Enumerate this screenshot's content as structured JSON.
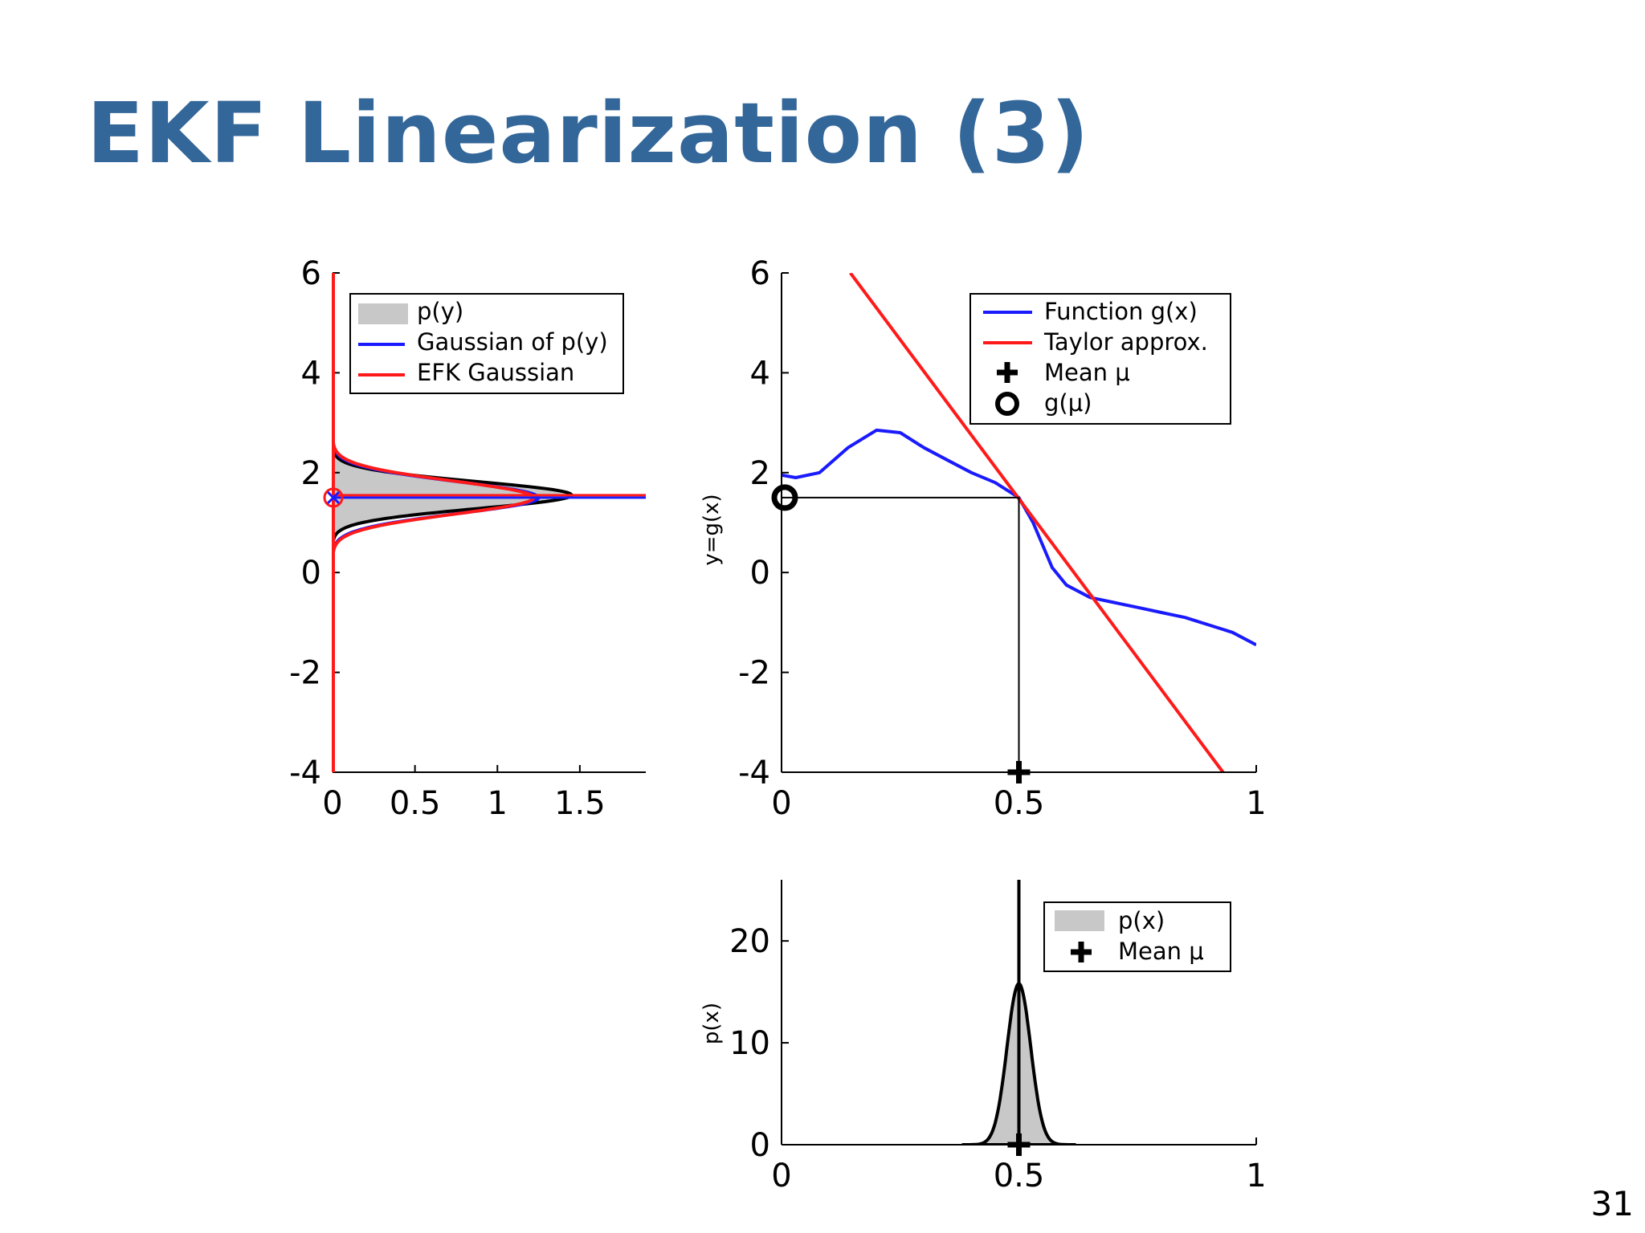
{
  "slide": {
    "title": "EKF Linearization (3)",
    "page_number": "31",
    "title_color": "#336699"
  },
  "colors": {
    "blue": "#1a1aff",
    "red": "#ff1a1a",
    "black": "#000000",
    "fill_gray": "#c8c8c8"
  },
  "chart_data": [
    {
      "id": "py",
      "type": "area",
      "orientation": "horizontal",
      "xlim": [
        0,
        1.9
      ],
      "ylim": [
        -4,
        6
      ],
      "xticks": [
        0,
        0.5,
        1,
        1.5
      ],
      "xtick_labels": [
        "0",
        "0.5",
        "1",
        "1.5"
      ],
      "yticks": [
        -4,
        -2,
        0,
        2,
        4,
        6
      ],
      "ytick_labels": [
        "-4",
        "-2",
        "0",
        "2",
        "4",
        "6"
      ],
      "legend_position": "top-right",
      "legend": [
        "p(y)",
        "Gaussian of p(y)",
        "EFK Gaussian"
      ],
      "series": [
        {
          "name": "p(y)",
          "style": "filled-histogram",
          "mean": 1.55,
          "std": 0.27,
          "peak": 1.45
        },
        {
          "name": "Gaussian of p(y)",
          "mean": 1.5,
          "std": 0.32,
          "peak": 1.25
        },
        {
          "name": "EFK Gaussian",
          "mean": 1.5,
          "std": 0.33,
          "peak": 1.22
        }
      ],
      "markers": [
        {
          "y": 1.5,
          "type": "circle+cross"
        }
      ]
    },
    {
      "id": "gx",
      "type": "line",
      "xlim": [
        0,
        1
      ],
      "ylim": [
        -4,
        6
      ],
      "xticks": [
        0,
        0.5,
        1
      ],
      "xtick_labels": [
        "0",
        "0.5",
        "1"
      ],
      "yticks": [
        -4,
        -2,
        0,
        2,
        4,
        6
      ],
      "ytick_labels": [
        "-4",
        "-2",
        "0",
        "2",
        "4",
        "6"
      ],
      "ylabel": "y=g(x)",
      "legend_position": "top-right",
      "legend": [
        "Function g(x)",
        "Taylor approx.",
        "Mean μ",
        "g(μ)"
      ],
      "series": [
        {
          "name": "Function g(x)",
          "x": [
            0,
            0.03,
            0.08,
            0.14,
            0.2,
            0.25,
            0.3,
            0.35,
            0.4,
            0.45,
            0.5,
            0.53,
            0.57,
            0.6,
            0.65,
            0.7,
            0.75,
            0.8,
            0.85,
            0.9,
            0.95,
            1.0
          ],
          "y": [
            1.95,
            1.9,
            2.0,
            2.5,
            2.85,
            2.8,
            2.5,
            2.25,
            2.0,
            1.8,
            1.5,
            1.0,
            0.1,
            -0.25,
            -0.5,
            -0.6,
            -0.7,
            -0.8,
            -0.9,
            -1.05,
            -1.2,
            -1.45
          ]
        },
        {
          "name": "Taylor approx.",
          "x": [
            0.145,
            0.93
          ],
          "y": [
            6.0,
            -4.0
          ]
        }
      ],
      "mean_mu": 0.5,
      "g_mu": 1.5
    },
    {
      "id": "px",
      "type": "area",
      "xlim": [
        0,
        1
      ],
      "ylim": [
        0,
        26
      ],
      "xticks": [
        0,
        0.5,
        1
      ],
      "xtick_labels": [
        "0",
        "0.5",
        "1"
      ],
      "yticks": [
        0,
        10,
        20
      ],
      "ytick_labels": [
        "0",
        "10",
        "20"
      ],
      "ylabel": "p(x)",
      "legend_position": "top-right",
      "legend": [
        "p(x)",
        "Mean μ"
      ],
      "series": [
        {
          "name": "p(x)",
          "mean": 0.5,
          "std": 0.025,
          "peak": 15.8
        }
      ],
      "mean_mu": 0.5
    }
  ]
}
